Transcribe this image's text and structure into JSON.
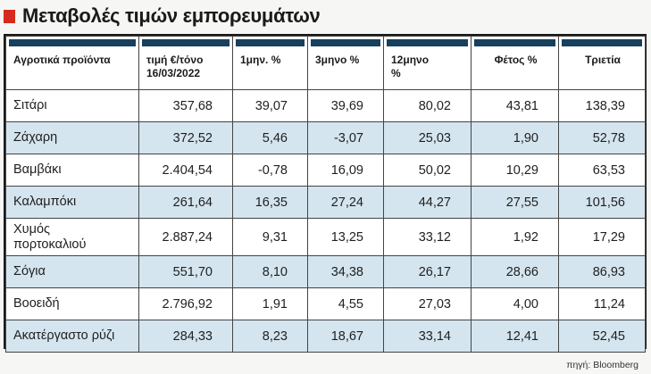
{
  "title": "Μεταβολές τιμών εμπορευμάτων",
  "columns": [
    "Αγροτικά προϊόντα",
    "τιμή €/τόνο\n16/03/2022",
    "1μην. %",
    "3μηνο %",
    "12μηνο\n%",
    "Φέτος %",
    "Τριετία"
  ],
  "rows": [
    [
      "Σιτάρι",
      "357,68",
      "39,07",
      "39,69",
      "80,02",
      "43,81",
      "138,39"
    ],
    [
      "Ζάχαρη",
      "372,52",
      "5,46",
      "-3,07",
      "25,03",
      "1,90",
      "52,78"
    ],
    [
      "Βαμβάκι",
      "2.404,54",
      "-0,78",
      "16,09",
      "50,02",
      "10,29",
      "63,53"
    ],
    [
      "Καλαμπόκι",
      "261,64",
      "16,35",
      "27,24",
      "44,27",
      "27,55",
      "101,56"
    ],
    [
      "Χυμός\nπορτοκαλιού",
      "2.887,24",
      "9,31",
      "13,25",
      "33,12",
      "1,92",
      "17,29"
    ],
    [
      "Σόγια",
      "551,70",
      "8,10",
      "34,38",
      "26,17",
      "28,66",
      "86,93"
    ],
    [
      "Βοοειδή",
      "2.796,92",
      "1,91",
      "4,55",
      "27,03",
      "4,00",
      "11,24"
    ],
    [
      "Ακατέργαστο ρύζι",
      "284,33",
      "8,23",
      "18,67",
      "33,14",
      "12,41",
      "52,45"
    ]
  ],
  "source": "πηγή: Bloomberg",
  "colors": {
    "accent": "#d52b1e",
    "header_bar": "#17405e",
    "shade": "#d4e5ef"
  }
}
